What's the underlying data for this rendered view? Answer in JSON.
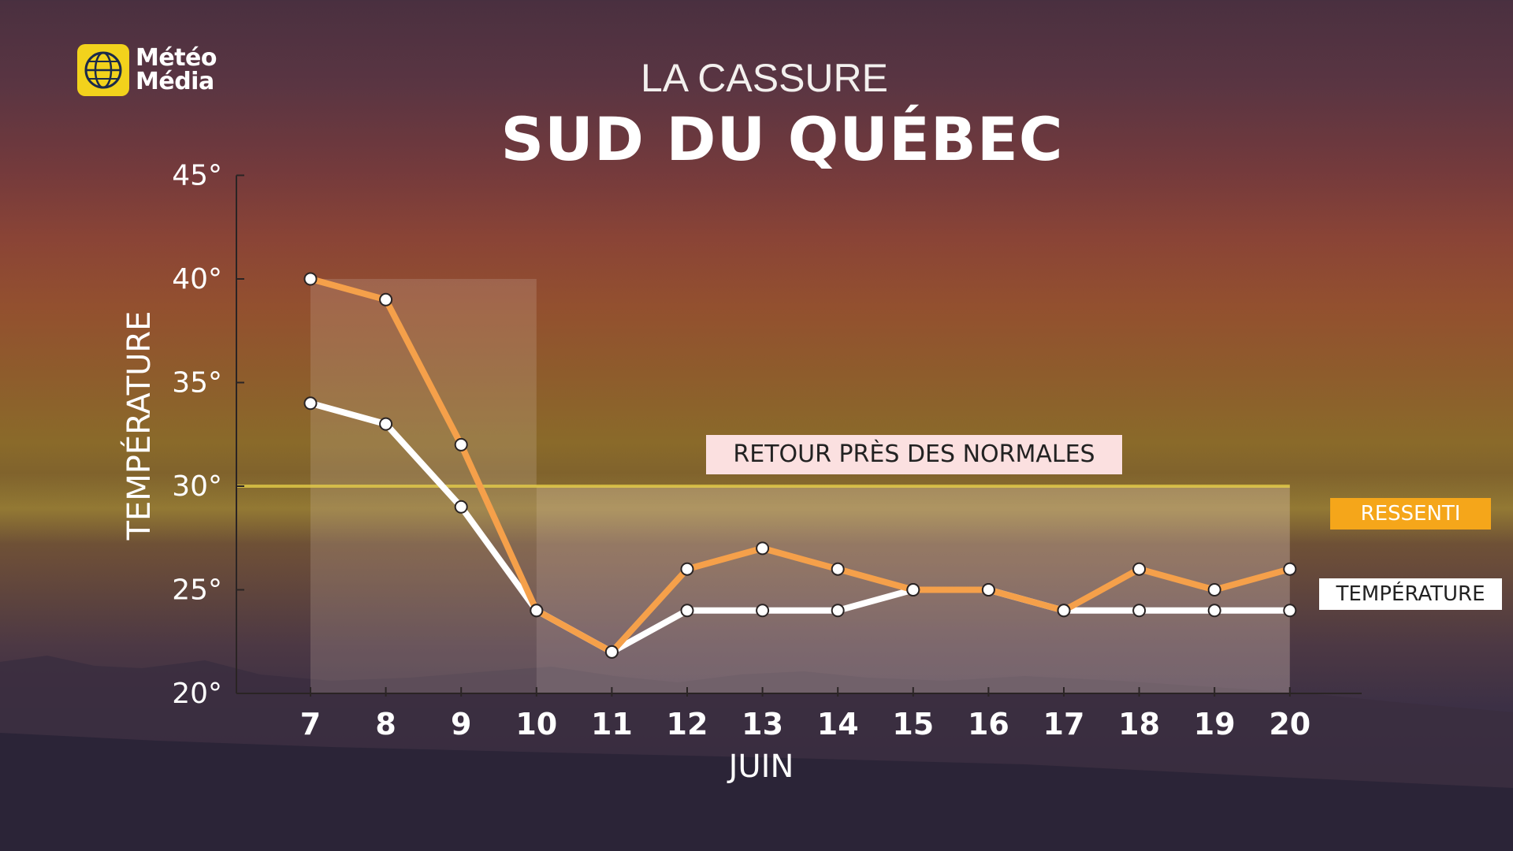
{
  "logo": {
    "line1": "Météo",
    "line2": "Média"
  },
  "header": {
    "title": "LA CASSURE",
    "subtitle": "SUD DU QUÉBEC"
  },
  "annotation": "RETOUR PRÈS DES NORMALES",
  "legend": {
    "ressenti": "RESSENTI",
    "temperature": "TEMPÉRATURE"
  },
  "colors": {
    "ressenti": "#f5a04a",
    "temperature": "#ffffff",
    "threshold_line": "#e8d24a"
  },
  "chart_data": {
    "type": "line",
    "x": [
      7,
      8,
      9,
      10,
      11,
      12,
      13,
      14,
      15,
      16,
      17,
      18,
      19,
      20
    ],
    "x_tick_labels": [
      "7",
      "8",
      "9",
      "10",
      "11",
      "12",
      "13",
      "14",
      "15",
      "16",
      "17",
      "18",
      "19",
      "20"
    ],
    "xlabel": "JUIN",
    "ylabel": "TEMPÉRATURE",
    "ylim": [
      20,
      45
    ],
    "y_ticks": [
      20,
      25,
      30,
      35,
      40,
      45
    ],
    "y_tick_labels": [
      "20°",
      "25°",
      "30°",
      "35°",
      "40°",
      "45°"
    ],
    "series": [
      {
        "name": "RESSENTI",
        "values": [
          40,
          39,
          32,
          24,
          22,
          26,
          27,
          26,
          25,
          25,
          24,
          26,
          25,
          26
        ]
      },
      {
        "name": "TEMPÉRATURE",
        "values": [
          34,
          33,
          29,
          24,
          22,
          24,
          24,
          24,
          25,
          25,
          24,
          24,
          24,
          24
        ]
      }
    ],
    "threshold": 30,
    "shaded_ranges": [
      [
        7,
        10
      ],
      [
        10,
        20
      ]
    ]
  }
}
